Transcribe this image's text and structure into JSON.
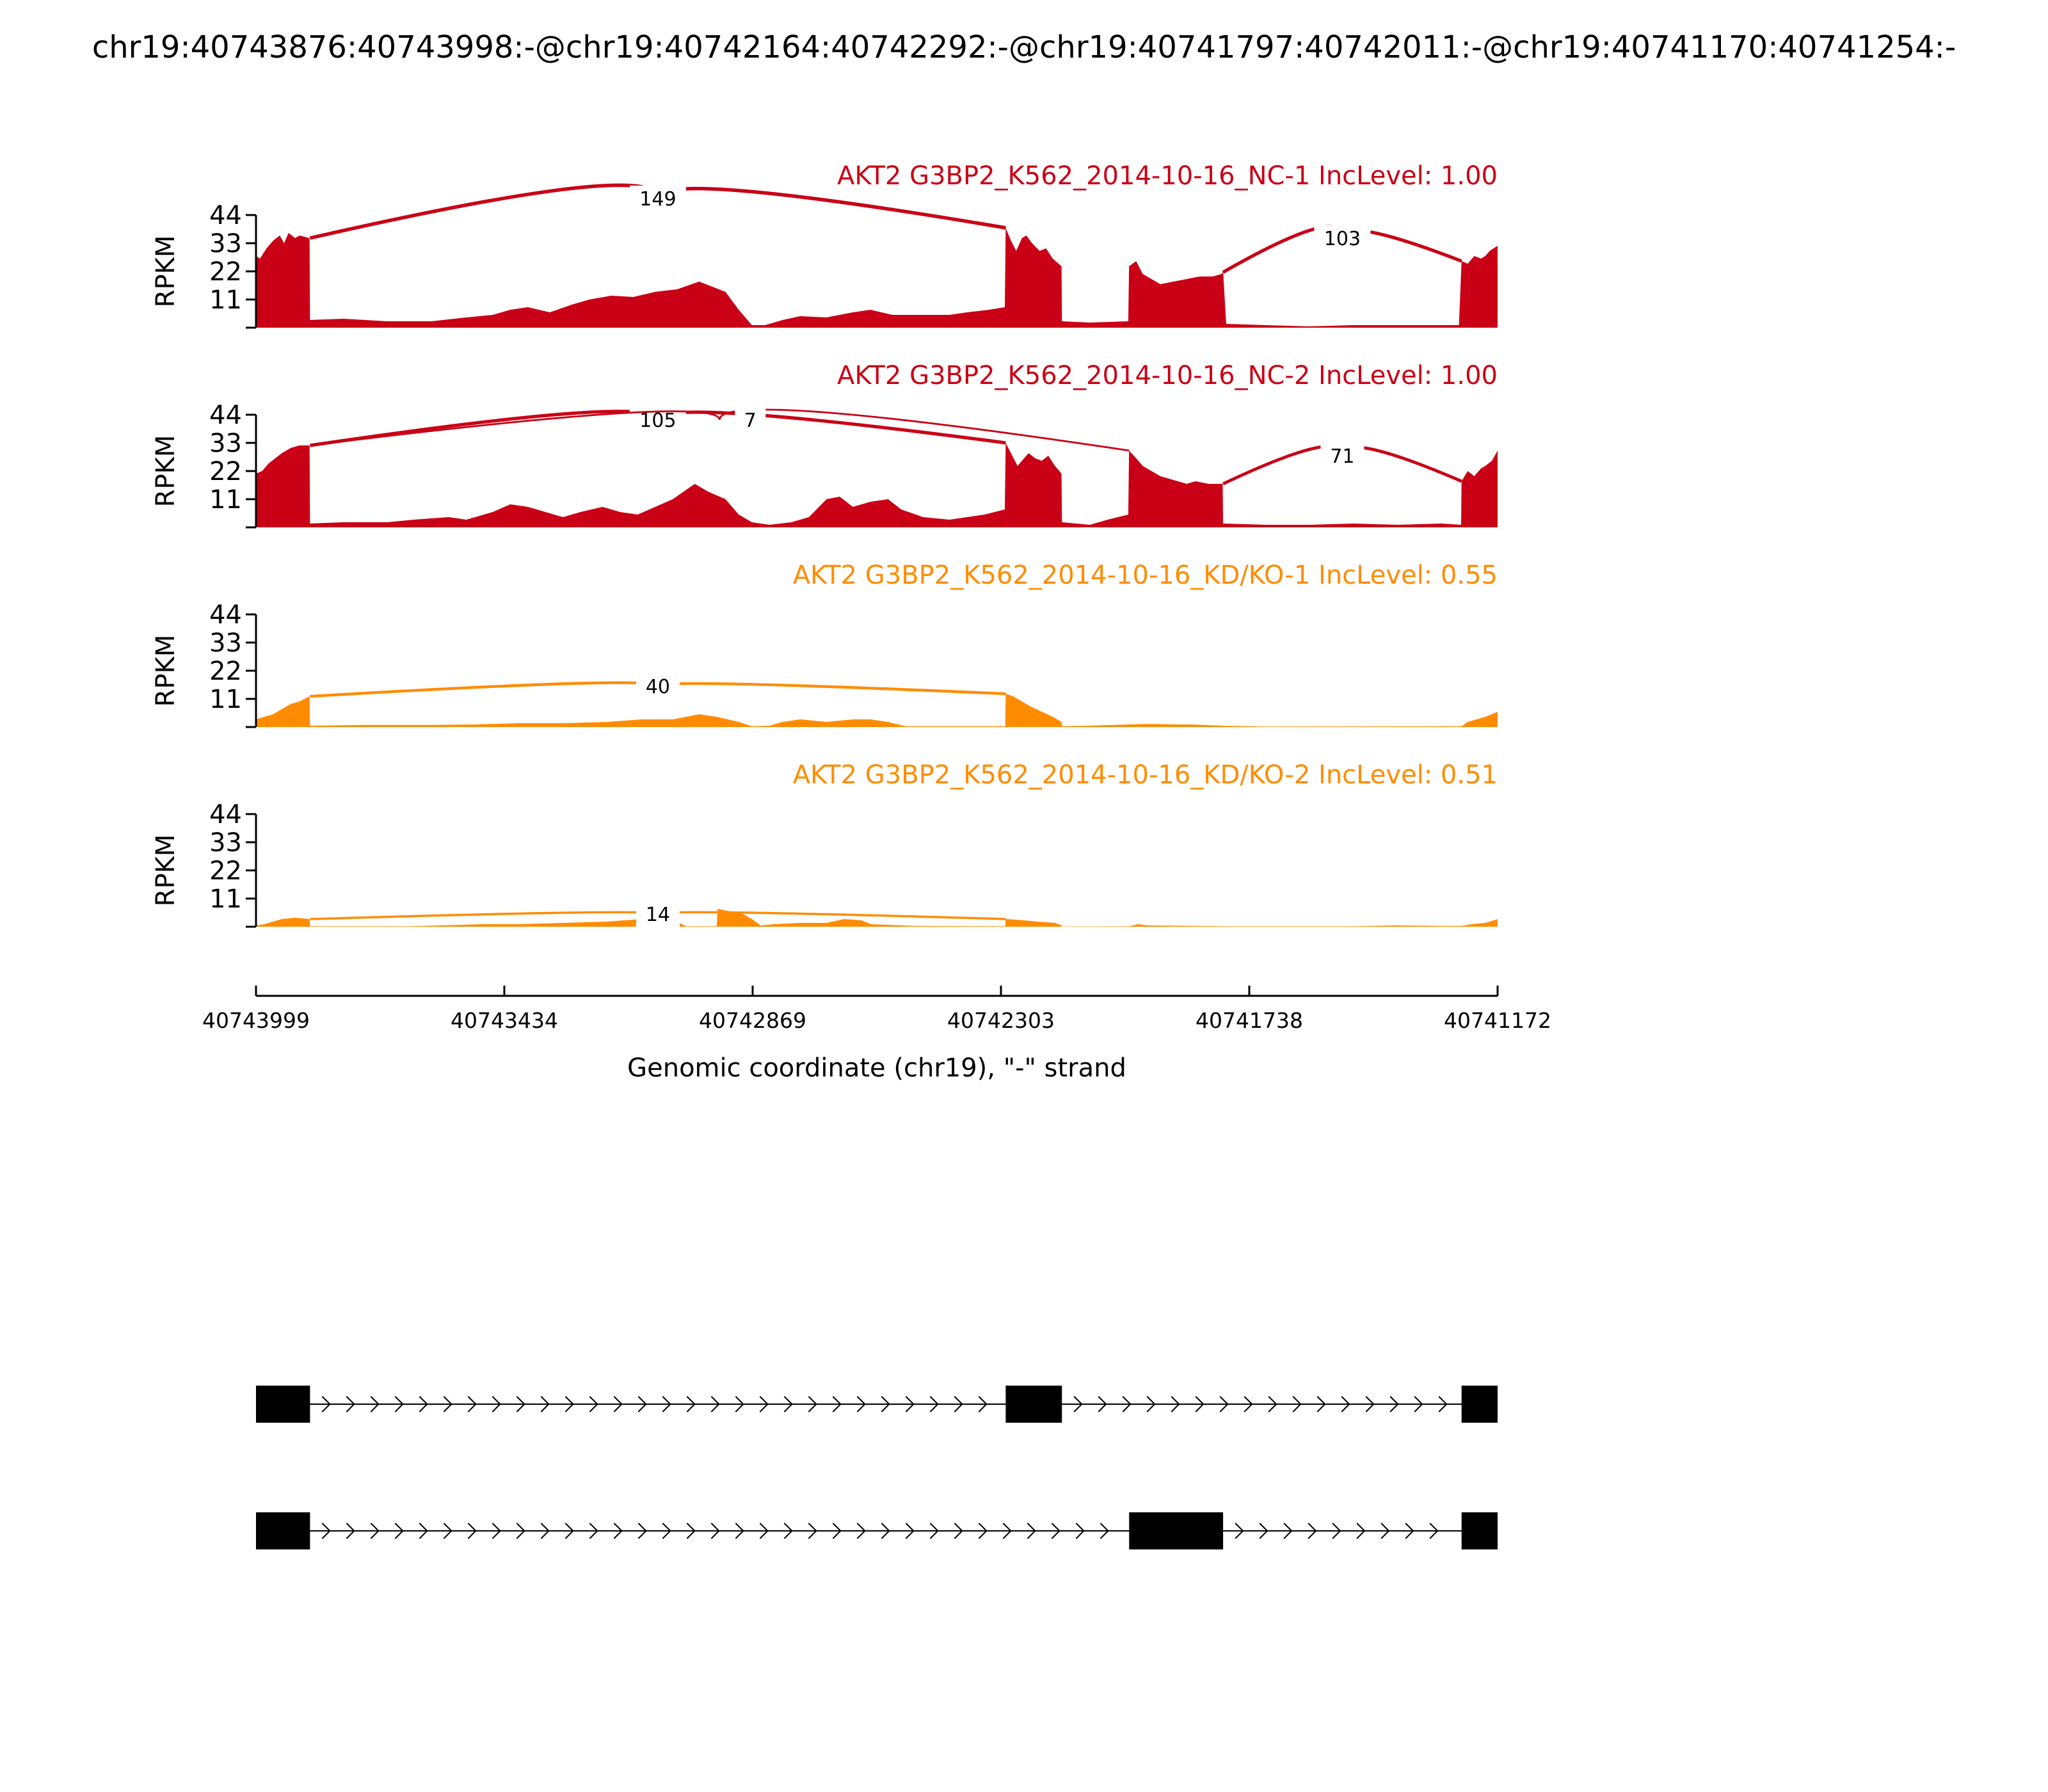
{
  "title": "chr19:40743876:40743998:-@chr19:40742164:40742292:-@chr19:40741797:40742011:-@chr19:40741170:40741254:-",
  "chart_data": {
    "type": "sashimi",
    "genomic_range": [
      40743999,
      40741172
    ],
    "strand": "-",
    "xlabel": "Genomic coordinate (chr19), \"-\" strand",
    "xticks": [
      "40743999",
      "40743434",
      "40742869",
      "40742303",
      "40741738",
      "40741172"
    ],
    "ylabel": "RPKM",
    "ylim": [
      0,
      44
    ],
    "yticks": [
      "44",
      "33",
      "22",
      "11"
    ],
    "colors": {
      "control": "#c90016",
      "knockdown": "#ff8c00"
    },
    "tracks": [
      {
        "label": "AKT2 G3BP2_K562_2014-10-16_NC-1 IncLevel: 1.00",
        "group": "control",
        "coverage": [
          [
            40743999,
            28
          ],
          [
            40743990,
            27
          ],
          [
            40743975,
            31
          ],
          [
            40743960,
            34
          ],
          [
            40743945,
            36
          ],
          [
            40743935,
            33
          ],
          [
            40743925,
            37
          ],
          [
            40743910,
            35
          ],
          [
            40743900,
            36
          ],
          [
            40743877,
            35
          ],
          [
            40743876,
            3
          ],
          [
            40743800,
            3.5
          ],
          [
            40743700,
            2.5
          ],
          [
            40743600,
            2.5
          ],
          [
            40743520,
            4
          ],
          [
            40743460,
            5
          ],
          [
            40743420,
            7
          ],
          [
            40743380,
            8
          ],
          [
            40743330,
            6
          ],
          [
            40743280,
            9
          ],
          [
            40743240,
            11
          ],
          [
            40743190,
            12.5
          ],
          [
            40743140,
            12
          ],
          [
            40743090,
            14
          ],
          [
            40743040,
            15
          ],
          [
            40742990,
            18
          ],
          [
            40742960,
            16
          ],
          [
            40742930,
            14
          ],
          [
            40742900,
            7
          ],
          [
            40742870,
            1
          ],
          [
            40742840,
            1
          ],
          [
            40742800,
            3
          ],
          [
            40742760,
            4.5
          ],
          [
            40742700,
            4
          ],
          [
            40742640,
            6
          ],
          [
            40742600,
            7
          ],
          [
            40742550,
            5
          ],
          [
            40742480,
            5
          ],
          [
            40742420,
            5
          ],
          [
            40742380,
            6
          ],
          [
            40742330,
            7
          ],
          [
            40742294,
            8
          ],
          [
            40742292,
            39
          ],
          [
            40742280,
            34
          ],
          [
            40742268,
            30
          ],
          [
            40742255,
            35
          ],
          [
            40742245,
            36
          ],
          [
            40742232,
            33
          ],
          [
            40742215,
            30
          ],
          [
            40742200,
            31
          ],
          [
            40742185,
            27
          ],
          [
            40742165,
            24
          ],
          [
            40742164,
            2.5
          ],
          [
            40742100,
            2
          ],
          [
            40742013,
            2.5
          ],
          [
            40742011,
            24
          ],
          [
            40741995,
            26
          ],
          [
            40741980,
            21
          ],
          [
            40741960,
            19
          ],
          [
            40741940,
            17
          ],
          [
            40741910,
            18
          ],
          [
            40741880,
            19
          ],
          [
            40741850,
            20
          ],
          [
            40741820,
            20
          ],
          [
            40741800,
            21
          ],
          [
            40741797,
            22
          ],
          [
            40741790,
            1.5
          ],
          [
            40741700,
            1
          ],
          [
            40741600,
            0.5
          ],
          [
            40741500,
            1
          ],
          [
            40741400,
            1
          ],
          [
            40741300,
            1
          ],
          [
            40741260,
            1
          ],
          [
            40741254,
            26
          ],
          [
            40741240,
            25
          ],
          [
            40741225,
            28
          ],
          [
            40741210,
            27
          ],
          [
            40741200,
            28
          ],
          [
            40741190,
            30
          ],
          [
            40741172,
            32
          ]
        ],
        "junctions": [
          {
            "from": 40743876,
            "to": 40742292,
            "count": 149,
            "peak": 50.5
          },
          {
            "from": 40741797,
            "to": 40741254,
            "count": 103,
            "peak": 35
          }
        ]
      },
      {
        "label": "AKT2 G3BP2_K562_2014-10-16_NC-2 IncLevel: 1.00",
        "group": "control",
        "coverage": [
          [
            40743999,
            21
          ],
          [
            40743985,
            22
          ],
          [
            40743970,
            25
          ],
          [
            40743955,
            27
          ],
          [
            40743940,
            29
          ],
          [
            40743920,
            31
          ],
          [
            40743900,
            32
          ],
          [
            40743877,
            32
          ],
          [
            40743876,
            1.5
          ],
          [
            40743800,
            2
          ],
          [
            40743700,
            2
          ],
          [
            40743640,
            3
          ],
          [
            40743560,
            4
          ],
          [
            40743520,
            3
          ],
          [
            40743460,
            6
          ],
          [
            40743420,
            9
          ],
          [
            40743380,
            8
          ],
          [
            40743340,
            6
          ],
          [
            40743300,
            4
          ],
          [
            40743260,
            6
          ],
          [
            40743210,
            8
          ],
          [
            40743170,
            6
          ],
          [
            40743130,
            5
          ],
          [
            40743090,
            8
          ],
          [
            40743050,
            11
          ],
          [
            40743000,
            17
          ],
          [
            40742970,
            14
          ],
          [
            40742930,
            11
          ],
          [
            40742900,
            5
          ],
          [
            40742870,
            2
          ],
          [
            40742830,
            1
          ],
          [
            40742780,
            2
          ],
          [
            40742740,
            4
          ],
          [
            40742700,
            11
          ],
          [
            40742670,
            12
          ],
          [
            40742640,
            8
          ],
          [
            40742600,
            10
          ],
          [
            40742560,
            11
          ],
          [
            40742530,
            7
          ],
          [
            40742480,
            4
          ],
          [
            40742420,
            3
          ],
          [
            40742380,
            4
          ],
          [
            40742340,
            5
          ],
          [
            40742294,
            7
          ],
          [
            40742292,
            33
          ],
          [
            40742280,
            29
          ],
          [
            40742265,
            24
          ],
          [
            40742250,
            27
          ],
          [
            40742240,
            29
          ],
          [
            40742225,
            27
          ],
          [
            40742210,
            26
          ],
          [
            40742195,
            28
          ],
          [
            40742180,
            24
          ],
          [
            40742165,
            21
          ],
          [
            40742164,
            2
          ],
          [
            40742100,
            1
          ],
          [
            40742060,
            3
          ],
          [
            40742013,
            5
          ],
          [
            40742011,
            30
          ],
          [
            40741995,
            27
          ],
          [
            40741980,
            24
          ],
          [
            40741960,
            22
          ],
          [
            40741940,
            20
          ],
          [
            40741920,
            19
          ],
          [
            40741900,
            18
          ],
          [
            40741880,
            17
          ],
          [
            40741860,
            18
          ],
          [
            40741830,
            17
          ],
          [
            40741798,
            17
          ],
          [
            40741797,
            1.5
          ],
          [
            40741700,
            1
          ],
          [
            40741600,
            1
          ],
          [
            40741500,
            1.5
          ],
          [
            40741400,
            1
          ],
          [
            40741300,
            1.5
          ],
          [
            40741255,
            1
          ],
          [
            40741254,
            18
          ],
          [
            40741240,
            22
          ],
          [
            40741225,
            20
          ],
          [
            40741210,
            23
          ],
          [
            40741200,
            24
          ],
          [
            40741185,
            26
          ],
          [
            40741172,
            30
          ]
        ],
        "junctions": [
          {
            "from": 40743876,
            "to": 40742292,
            "count": 105,
            "peak": 42
          },
          {
            "from": 40743876,
            "to": 40742011,
            "count": 7,
            "peak": 42
          },
          {
            "from": 40741797,
            "to": 40741254,
            "count": 71,
            "peak": 28
          }
        ]
      },
      {
        "label": "AKT2 G3BP2_K562_2014-10-16_KD/KO-1 IncLevel: 0.55",
        "group": "knockdown",
        "coverage": [
          [
            40743999,
            3
          ],
          [
            40743980,
            4
          ],
          [
            40743960,
            5
          ],
          [
            40743940,
            7
          ],
          [
            40743920,
            9
          ],
          [
            40743900,
            10
          ],
          [
            40743877,
            12
          ],
          [
            40743876,
            0.5
          ],
          [
            40743750,
            0.8
          ],
          [
            40743600,
            0.8
          ],
          [
            40743500,
            1
          ],
          [
            40743400,
            1.5
          ],
          [
            40743300,
            1.5
          ],
          [
            40743200,
            2
          ],
          [
            40743120,
            3
          ],
          [
            40743050,
            3
          ],
          [
            40742990,
            5
          ],
          [
            40742950,
            4
          ],
          [
            40742900,
            2
          ],
          [
            40742870,
            0.3
          ],
          [
            40742830,
            0.5
          ],
          [
            40742800,
            2
          ],
          [
            40742760,
            3
          ],
          [
            40742700,
            2
          ],
          [
            40742640,
            3
          ],
          [
            40742600,
            3
          ],
          [
            40742560,
            2
          ],
          [
            40742520,
            0.3
          ],
          [
            40742293,
            0.3
          ],
          [
            40742292,
            13
          ],
          [
            40742275,
            12
          ],
          [
            40742255,
            10
          ],
          [
            40742235,
            8
          ],
          [
            40742210,
            6
          ],
          [
            40742185,
            4
          ],
          [
            40742165,
            2
          ],
          [
            40742164,
            0.3
          ],
          [
            40742110,
            0.5
          ],
          [
            40742011,
            1
          ],
          [
            40741960,
            1.2
          ],
          [
            40741900,
            1
          ],
          [
            40741870,
            1
          ],
          [
            40741797,
            0.5
          ],
          [
            40741700,
            0.2
          ],
          [
            40741254,
            0.3
          ],
          [
            40741240,
            2
          ],
          [
            40741220,
            3
          ],
          [
            40741200,
            4
          ],
          [
            40741185,
            5
          ],
          [
            40741172,
            6
          ]
        ],
        "junctions": [
          {
            "from": 40743876,
            "to": 40742292,
            "count": 40,
            "peak": 16
          }
        ]
      },
      {
        "label": "AKT2 G3BP2_K562_2014-10-16_KD/KO-2 IncLevel: 0.51",
        "group": "knockdown",
        "coverage": [
          [
            40743999,
            0.5
          ],
          [
            40743980,
            1
          ],
          [
            40743960,
            2
          ],
          [
            40743940,
            3
          ],
          [
            40743910,
            3.5
          ],
          [
            40743877,
            3
          ],
          [
            40743876,
            0.2
          ],
          [
            40743650,
            0.2
          ],
          [
            40743580,
            0.5
          ],
          [
            40743480,
            1
          ],
          [
            40743400,
            1
          ],
          [
            40743300,
            1.5
          ],
          [
            40743200,
            2
          ],
          [
            40743120,
            3
          ],
          [
            40743090,
            4
          ],
          [
            40743060,
            3.5
          ],
          [
            40743020,
            0.2
          ],
          [
            40742950,
            0.2
          ],
          [
            40742948,
            7
          ],
          [
            40742920,
            6
          ],
          [
            40742890,
            5
          ],
          [
            40742870,
            3
          ],
          [
            40742850,
            0.5
          ],
          [
            40742820,
            1
          ],
          [
            40742760,
            1.5
          ],
          [
            40742700,
            1.5
          ],
          [
            40742660,
            3
          ],
          [
            40742620,
            2.5
          ],
          [
            40742600,
            1
          ],
          [
            40742500,
            0.3
          ],
          [
            40742293,
            0.2
          ],
          [
            40742292,
            3
          ],
          [
            40742250,
            2.5
          ],
          [
            40742220,
            2
          ],
          [
            40742180,
            1.5
          ],
          [
            40742165,
            0.5
          ],
          [
            40742164,
            0.1
          ],
          [
            40742011,
            0.2
          ],
          [
            40741990,
            1
          ],
          [
            40741970,
            0.5
          ],
          [
            40741797,
            0.2
          ],
          [
            40741500,
            0.2
          ],
          [
            40741400,
            0.5
          ],
          [
            40741300,
            0.3
          ],
          [
            40741254,
            0.3
          ],
          [
            40741230,
            1
          ],
          [
            40741200,
            1.5
          ],
          [
            40741180,
            2.5
          ],
          [
            40741172,
            3
          ]
        ],
        "junctions": [
          {
            "from": 40743876,
            "to": 40742292,
            "count": 14,
            "peak": 5
          }
        ]
      }
    ],
    "isoforms": [
      {
        "exons": [
          [
            40743999,
            40743876
          ],
          [
            40742292,
            40742164
          ],
          [
            40741254,
            40741172
          ]
        ]
      },
      {
        "exons": [
          [
            40743999,
            40743876
          ],
          [
            40742011,
            40741797
          ],
          [
            40741254,
            40741172
          ]
        ]
      }
    ]
  }
}
